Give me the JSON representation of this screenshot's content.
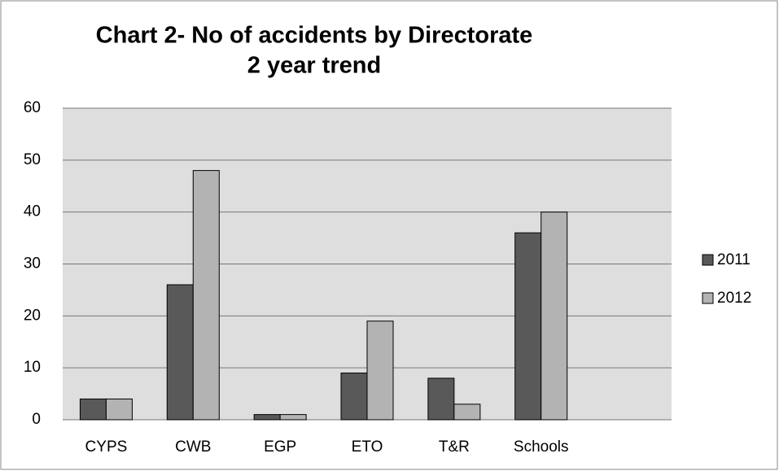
{
  "chart_data": {
    "type": "bar",
    "title_lines": [
      "Chart 2- No of accidents by Directorate",
      "2 year trend"
    ],
    "categories": [
      "CYPS",
      "CWB",
      "EGP",
      "ETO",
      "T&R",
      "Schools",
      null
    ],
    "series": [
      {
        "name": "2011",
        "color": "#595959",
        "values": [
          4,
          26,
          1,
          9,
          8,
          36,
          null
        ]
      },
      {
        "name": "2012",
        "color": "#b3b3b3",
        "values": [
          4,
          48,
          1,
          19,
          3,
          40,
          null
        ]
      }
    ],
    "ylim": [
      0,
      60
    ],
    "yticks": [
      0,
      10,
      20,
      30,
      40,
      50,
      60
    ],
    "grid": true,
    "legend": "right"
  }
}
